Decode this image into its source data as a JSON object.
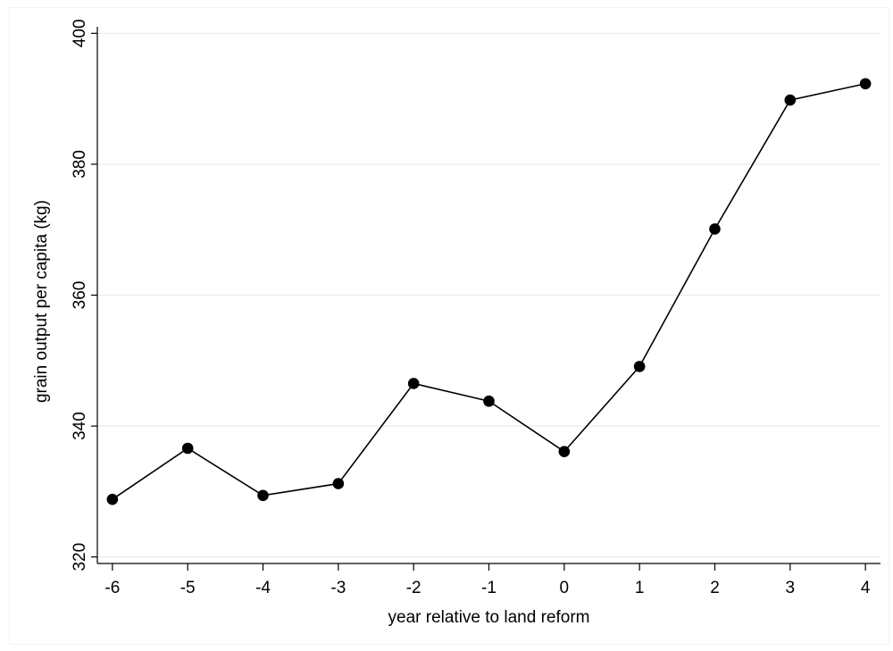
{
  "chart_data": {
    "type": "line",
    "xlabel": "year relative to land reform",
    "ylabel": "grain output per capita (kg)",
    "x": [
      -6,
      -5,
      -4,
      -3,
      -2,
      -1,
      0,
      1,
      2,
      3,
      4
    ],
    "series": [
      {
        "values": [
          328.8,
          336.6,
          329.4,
          331.2,
          346.5,
          343.8,
          336.1,
          349.1,
          370.1,
          389.8,
          392.3
        ],
        "color": "#000000",
        "marker": "circle"
      }
    ],
    "xlim": [
      -6.2,
      4.2
    ],
    "ylim": [
      319,
      401
    ],
    "xticks": [
      "-6",
      "-5",
      "-4",
      "-3",
      "-2",
      "-1",
      "0",
      "1",
      "2",
      "3",
      "4"
    ],
    "yticks": [
      "320",
      "340",
      "360",
      "380",
      "400"
    ],
    "grid": "horizontal",
    "grid_color": "#e6eef3",
    "legend": "none"
  }
}
